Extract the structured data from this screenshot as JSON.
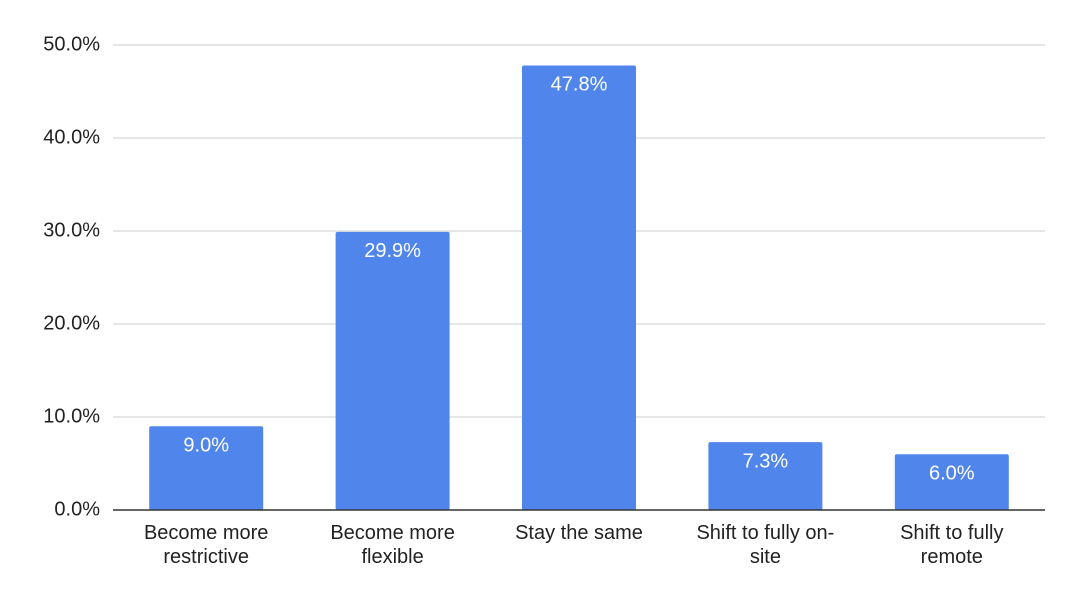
{
  "chart_data": {
    "type": "bar",
    "categories": [
      "Become more restrictive",
      "Become more flexible",
      "Stay the same",
      "Shift to fully on-site",
      "Shift to fully remote"
    ],
    "values": [
      9.0,
      29.9,
      47.8,
      7.3,
      6.0
    ],
    "value_labels": [
      "9.0%",
      "29.9%",
      "47.8%",
      "7.3%",
      "6.0%"
    ],
    "color": "#5086ec",
    "ylim": [
      0,
      50
    ],
    "yticks": [
      {
        "value": 0,
        "label": "0.0%"
      },
      {
        "value": 10,
        "label": "10.0%"
      },
      {
        "value": 20,
        "label": "20.0%"
      },
      {
        "value": 30,
        "label": "30.0%"
      },
      {
        "value": 40,
        "label": "40.0%"
      },
      {
        "value": 50,
        "label": "50.0%"
      }
    ],
    "grid": true
  }
}
